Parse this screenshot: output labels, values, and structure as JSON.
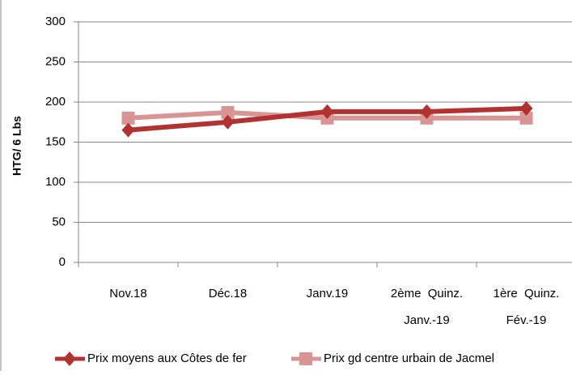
{
  "chart_data": {
    "type": "line",
    "y_label": "HTG/ 6 Lbs",
    "categories": [
      "Nov.18",
      "Déc.18",
      "Janv.19",
      "2ème  Quinz.\nJanv.-19",
      "1ère  Quinz.\nFév.-19"
    ],
    "series": [
      {
        "name": "Prix moyens aux Côtes de fer",
        "color": "#b23232",
        "marker": "diamond",
        "values": [
          165,
          175,
          188,
          188,
          192
        ]
      },
      {
        "name": "Prix gd centre urbain de Jacmel",
        "color": "#d99594",
        "marker": "square",
        "values": [
          180,
          187,
          180,
          180,
          180
        ]
      }
    ],
    "ylim": [
      0,
      300
    ],
    "yticks": [
      0,
      50,
      100,
      150,
      200,
      250,
      300
    ],
    "grid": true,
    "legend": "bottom"
  }
}
